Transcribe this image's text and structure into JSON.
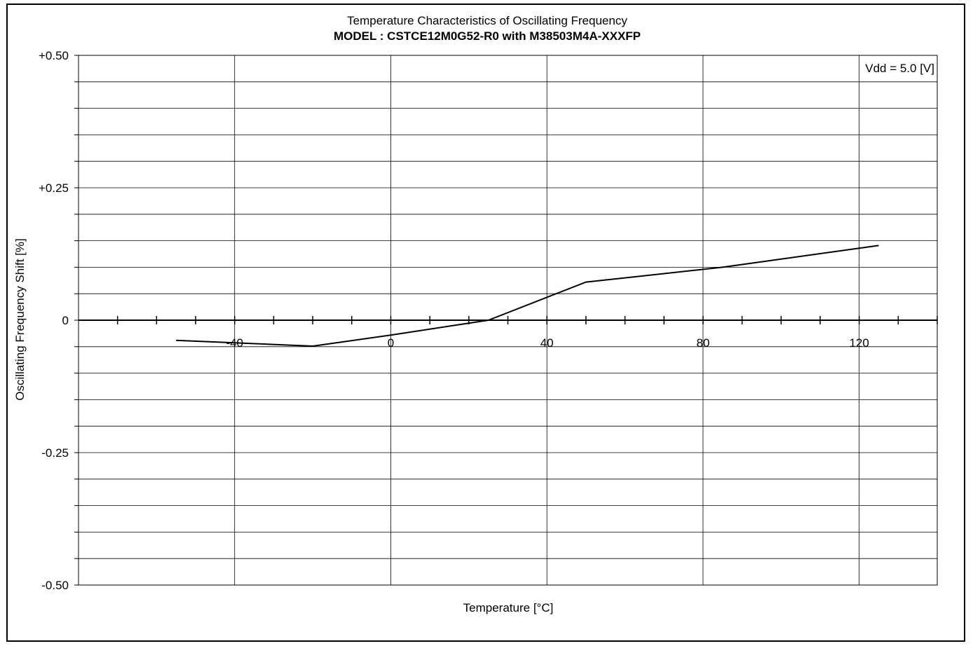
{
  "chart_data": {
    "type": "line",
    "title": "Temperature Characteristics of Oscillating Frequency",
    "subtitle": "MODEL : CSTCE12M0G52-R0 with M38503M4A-XXXFP",
    "xlabel": "Temperature [°C]",
    "ylabel": "Oscillating Frequency Shift [%]",
    "annotation": "Vdd = 5.0 [V]",
    "xlim": [
      -80,
      140
    ],
    "ylim": [
      -0.5,
      0.5
    ],
    "x_ticks": [
      {
        "value": -40,
        "label": "-40"
      },
      {
        "value": 0,
        "label": "0"
      },
      {
        "value": 40,
        "label": "40"
      },
      {
        "value": 80,
        "label": "80"
      },
      {
        "value": 120,
        "label": "120"
      }
    ],
    "y_ticks": [
      {
        "value": 0.5,
        "label": "+0.50"
      },
      {
        "value": 0.25,
        "label": "+0.25"
      },
      {
        "value": 0,
        "label": "0"
      },
      {
        "value": -0.25,
        "label": "-0.25"
      },
      {
        "value": -0.5,
        "label": "-0.50"
      }
    ],
    "grid": true,
    "series": [
      {
        "x": [
          -55,
          -20,
          0,
          25,
          50,
          85,
          125
        ],
        "y": [
          -0.038,
          -0.049,
          -0.028,
          0.0,
          0.072,
          0.1,
          0.141
        ]
      }
    ],
    "colors": {
      "line": "#000000",
      "grid": "#000000",
      "background": "#ffffff"
    }
  }
}
